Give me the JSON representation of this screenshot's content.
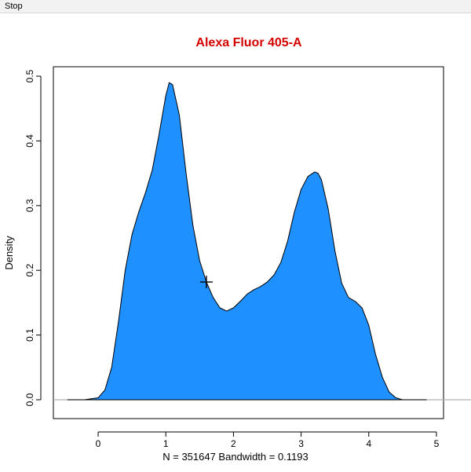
{
  "window": {
    "menu": [
      {
        "label": "Stop"
      }
    ]
  },
  "chart_data": {
    "type": "area",
    "title": "Alexa Fluor 405-A",
    "xlabel": "N = 351647   Bandwidth = 0.1193",
    "ylabel": "Density",
    "xlim": [
      -0.6,
      5.0
    ],
    "ylim": [
      -0.02,
      0.52
    ],
    "x_ticks": [
      0,
      1,
      2,
      3,
      4,
      5
    ],
    "y_ticks": [
      0.0,
      0.1,
      0.2,
      0.3,
      0.4,
      0.5
    ],
    "x_tick_labels": [
      "0",
      "1",
      "2",
      "3",
      "4",
      "5"
    ],
    "y_tick_labels": [
      "0.0",
      "0.1",
      "0.2",
      "0.3",
      "0.4",
      "0.5"
    ],
    "series": [
      {
        "fill": "#1e90ff",
        "stroke": "#000000",
        "x": [
          -0.45,
          -0.2,
          0.0,
          0.1,
          0.2,
          0.3,
          0.4,
          0.5,
          0.6,
          0.7,
          0.8,
          0.9,
          1.0,
          1.05,
          1.1,
          1.2,
          1.3,
          1.4,
          1.5,
          1.6,
          1.7,
          1.8,
          1.9,
          2.0,
          2.1,
          2.2,
          2.3,
          2.4,
          2.5,
          2.6,
          2.7,
          2.8,
          2.9,
          3.0,
          3.1,
          3.2,
          3.25,
          3.3,
          3.4,
          3.5,
          3.6,
          3.7,
          3.8,
          3.85,
          3.9,
          4.0,
          4.1,
          4.2,
          4.3,
          4.4,
          4.5,
          4.85
        ],
        "y": [
          0.0,
          0.0,
          0.003,
          0.015,
          0.05,
          0.12,
          0.2,
          0.255,
          0.29,
          0.32,
          0.355,
          0.41,
          0.47,
          0.49,
          0.487,
          0.44,
          0.35,
          0.27,
          0.215,
          0.182,
          0.158,
          0.142,
          0.137,
          0.142,
          0.152,
          0.163,
          0.17,
          0.175,
          0.182,
          0.193,
          0.212,
          0.245,
          0.29,
          0.325,
          0.345,
          0.352,
          0.35,
          0.34,
          0.295,
          0.23,
          0.18,
          0.158,
          0.152,
          0.147,
          0.142,
          0.115,
          0.07,
          0.035,
          0.012,
          0.003,
          0.0,
          0.0
        ]
      }
    ],
    "cursor_marker": {
      "x": 1.6,
      "y": 0.182
    }
  }
}
